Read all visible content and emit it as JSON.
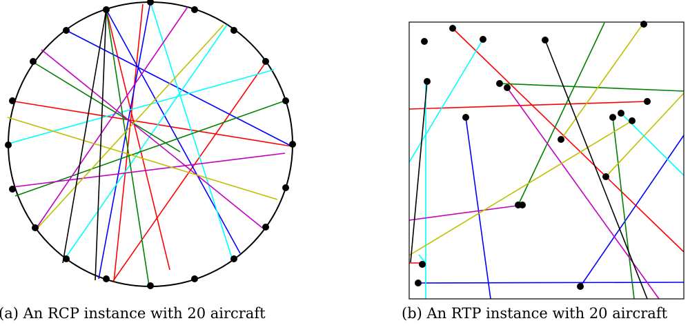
{
  "panels": [
    {
      "id": "a",
      "caption": "(a) An RCP instance with 20 aircraft",
      "shape": "circle",
      "segments": [
        {
          "color": "#ff0000",
          "from": [
            207,
            6
          ],
          "to": [
            165,
            408
          ]
        },
        {
          "color": "#ff0000",
          "from": [
            154,
            14
          ],
          "to": [
            246,
            391
          ]
        },
        {
          "color": "#ff0000",
          "from": [
            15,
            146
          ],
          "to": [
            423,
            212
          ]
        },
        {
          "color": "#ff0000",
          "from": [
            386,
            89
          ],
          "to": [
            164,
            407
          ]
        },
        {
          "color": "#0000ff",
          "from": [
            96,
            44
          ],
          "to": [
            423,
            212
          ]
        },
        {
          "color": "#0000ff",
          "from": [
            154,
            14
          ],
          "to": [
            348,
            367
          ]
        },
        {
          "color": "#0000ff",
          "from": [
            218,
            3
          ],
          "to": [
            143,
            404
          ]
        },
        {
          "color": "#00ffff",
          "from": [
            9,
            209
          ],
          "to": [
            397,
            101
          ]
        },
        {
          "color": "#00ffff",
          "from": [
            329,
            36
          ],
          "to": [
            94,
            375
          ]
        },
        {
          "color": "#00ffff",
          "from": [
            218,
            3
          ],
          "to": [
            338,
            380
          ]
        },
        {
          "color": "#008000",
          "from": [
            48,
            90
          ],
          "to": [
            261,
            220
          ]
        },
        {
          "color": "#008000",
          "from": [
            154,
            14
          ],
          "to": [
            216,
            414
          ]
        },
        {
          "color": "#008000",
          "from": [
            22,
            284
          ],
          "to": [
            413,
            146
          ]
        },
        {
          "color": "#c000c0",
          "from": [
            60,
            72
          ],
          "to": [
            380,
            330
          ]
        },
        {
          "color": "#c000c0",
          "from": [
            272,
            10
          ],
          "to": [
            51,
            333
          ]
        },
        {
          "color": "#c000c0",
          "from": [
            18,
            271
          ],
          "to": [
            413,
            222
          ]
        },
        {
          "color": "#bfbf00",
          "from": [
            324,
            36
          ],
          "to": [
            51,
            334
          ]
        },
        {
          "color": "#bfbf00",
          "from": [
            11,
            170
          ],
          "to": [
            402,
            289
          ]
        },
        {
          "color": "#000000",
          "from": [
            154,
            14
          ],
          "to": [
            91,
            381
          ]
        },
        {
          "color": "#000000",
          "from": [
            154,
            14
          ],
          "to": [
            138,
            406
          ]
        }
      ],
      "points": [
        [
          154,
          14
        ],
        [
          218,
          3
        ],
        [
          282,
          14
        ],
        [
          339,
          44
        ],
        [
          385,
          89
        ],
        [
          414,
          146
        ],
        [
          424,
          209
        ],
        [
          414,
          272
        ],
        [
          385,
          329
        ],
        [
          339,
          375
        ],
        [
          282,
          404
        ],
        [
          218,
          414
        ],
        [
          154,
          404
        ],
        [
          96,
          375
        ],
        [
          51,
          330
        ],
        [
          18,
          274
        ],
        [
          12,
          210
        ],
        [
          18,
          146
        ],
        [
          48,
          89
        ],
        [
          96,
          44
        ]
      ]
    },
    {
      "id": "b",
      "caption": "(b) An RTP instance with 20 aircraft",
      "shape": "rectangle",
      "segments": [
        {
          "color": "#ff0000",
          "from": [
            656,
            41
          ],
          "to": [
            991,
            365
          ]
        },
        {
          "color": "#ff0000",
          "from": [
            593,
            158
          ],
          "to": [
            938,
            147
          ]
        },
        {
          "color": "#0000ff",
          "from": [
            675,
            170
          ],
          "to": [
            711,
            433
          ]
        },
        {
          "color": "#0000ff",
          "from": [
            841,
            415
          ],
          "to": [
            991,
            196
          ]
        },
        {
          "color": "#0000ff",
          "from": [
            605,
            410
          ],
          "to": [
            991,
            409
          ]
        },
        {
          "color": "#00ffff",
          "from": [
            700,
            57
          ],
          "to": [
            593,
            235
          ]
        },
        {
          "color": "#00ffff",
          "from": [
            617,
            118
          ],
          "to": [
            617,
            433
          ]
        },
        {
          "color": "#00ffff",
          "from": [
            900,
            164
          ],
          "to": [
            991,
            254
          ]
        },
        {
          "color": "#008000",
          "from": [
            724,
            121
          ],
          "to": [
            991,
            132
          ]
        },
        {
          "color": "#008000",
          "from": [
            876,
            33
          ],
          "to": [
            751,
            297
          ]
        },
        {
          "color": "#008000",
          "from": [
            888,
            170
          ],
          "to": [
            919,
            433
          ]
        },
        {
          "color": "#c000c0",
          "from": [
            735,
            127
          ],
          "to": [
            955,
            433
          ]
        },
        {
          "color": "#c000c0",
          "from": [
            593,
            319
          ],
          "to": [
            757,
            297
          ]
        },
        {
          "color": "#bfbf00",
          "from": [
            933,
            33
          ],
          "to": [
            813,
            202
          ]
        },
        {
          "color": "#bfbf00",
          "from": [
            593,
            370
          ],
          "to": [
            916,
            175
          ]
        },
        {
          "color": "#bfbf00",
          "from": [
            878,
            256
          ],
          "to": [
            991,
            135
          ]
        },
        {
          "color": "#000000",
          "from": [
            790,
            58
          ],
          "to": [
            938,
            433
          ]
        },
        {
          "color": "#000000",
          "from": [
            619,
            118
          ],
          "to": [
            595,
            380
          ]
        },
        {
          "color": "#ff0000",
          "from": [
            593,
            381
          ],
          "to": [
            612,
            381
          ]
        },
        {
          "color": "#00ffff",
          "from": [
            607,
            369
          ],
          "to": [
            617,
            381
          ]
        }
      ],
      "points": [
        [
          615,
          60
        ],
        [
          656,
          41
        ],
        [
          700,
          57
        ],
        [
          790,
          58
        ],
        [
          933,
          35
        ],
        [
          619,
          118
        ],
        [
          724,
          121
        ],
        [
          735,
          127
        ],
        [
          938,
          147
        ],
        [
          675,
          170
        ],
        [
          888,
          170
        ],
        [
          900,
          164
        ],
        [
          916,
          175
        ],
        [
          813,
          202
        ],
        [
          878,
          256
        ],
        [
          751,
          297
        ],
        [
          757,
          297
        ],
        [
          612,
          383
        ],
        [
          606,
          410
        ],
        [
          841,
          415
        ]
      ]
    }
  ]
}
